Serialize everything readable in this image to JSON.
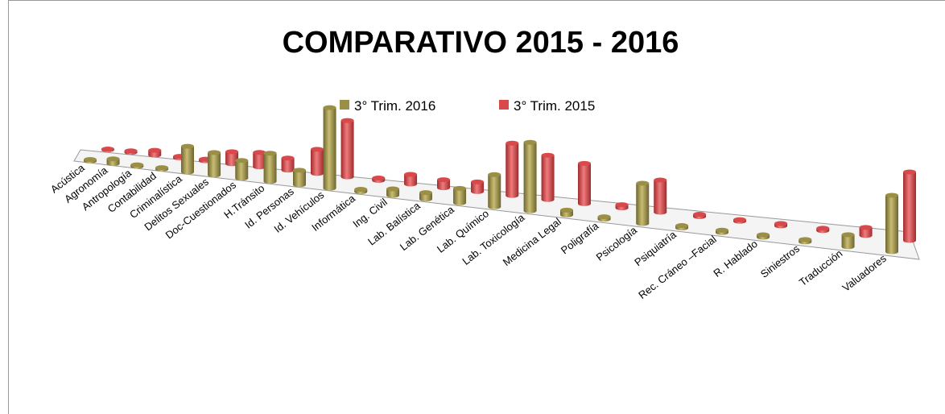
{
  "chart_data": {
    "type": "bar3d",
    "title": "COMPARATIVO  2015 - 2016",
    "categories": [
      "Acústica",
      "Agronomía",
      "Antropología",
      "Contabilidad",
      "Criminalística",
      "Delitos Sexuales",
      "Doc-Cuestionados",
      "H.Tránsito",
      "Id. Personas",
      "Id. Vehículos",
      "Informática",
      "Ing. Civil",
      "Lab. Balística",
      "Lab. Genética",
      "Lab. Químico",
      "Lab. Toxicología",
      "Medicina Legal",
      "Poligrafía",
      "Psicología",
      "Psiquiatría",
      "Rec. Cráneo –Facial",
      "R. Hablado",
      "Siniestros",
      "Traducción",
      "Valuadores"
    ],
    "series": [
      {
        "name": "3° Trim. 2016",
        "color": "#9b8f45",
        "values": [
          2,
          6,
          2,
          2,
          32,
          28,
          22,
          35,
          18,
          100,
          3,
          8,
          8,
          18,
          40,
          85,
          6,
          3,
          50,
          3,
          3,
          3,
          3,
          15,
          70
        ]
      },
      {
        "name": "3° Trim. 2015",
        "color": "#d9484a",
        "values": [
          1,
          2,
          6,
          2,
          2,
          15,
          18,
          15,
          30,
          70,
          3,
          12,
          10,
          12,
          65,
          55,
          50,
          4,
          40,
          3,
          2,
          3,
          3,
          10,
          85
        ]
      }
    ],
    "legend": "top"
  }
}
